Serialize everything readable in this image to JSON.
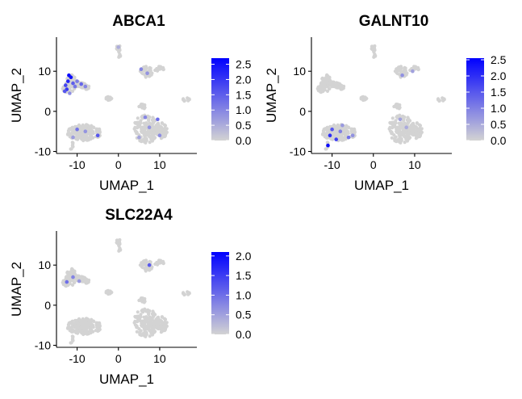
{
  "colors": {
    "low": "#d3d3d3",
    "high": "#0000ff",
    "axis": "#000000"
  },
  "chart_data": [
    {
      "type": "scatter",
      "title": "ABCA1",
      "xlabel": "UMAP_1",
      "ylabel": "UMAP_2",
      "xlim": [
        -15,
        19
      ],
      "ylim": [
        -10.5,
        18.5
      ],
      "xticks": [
        -10,
        0,
        10
      ],
      "yticks": [
        -10,
        0,
        10
      ],
      "legend": {
        "position": "right",
        "min": 0,
        "max": 2.7,
        "ticks": [
          0.0,
          0.5,
          1.0,
          1.5,
          2.0,
          2.5
        ],
        "tick_labels": [
          "0.0",
          "0.5",
          "1.0",
          "1.5",
          "2.0",
          "2.5"
        ]
      },
      "expression": [
        {
          "x": -11.5,
          "y": 8.5,
          "v": 2.5
        },
        {
          "x": -12.2,
          "y": 7.5,
          "v": 2.2
        },
        {
          "x": -12.8,
          "y": 6.5,
          "v": 1.8
        },
        {
          "x": -12.5,
          "y": 5.5,
          "v": 2.0
        },
        {
          "x": -11.0,
          "y": 7.0,
          "v": 1.5
        },
        {
          "x": -10.5,
          "y": 6.2,
          "v": 1.2
        },
        {
          "x": -9.0,
          "y": 6.8,
          "v": 1.4
        },
        {
          "x": -8.0,
          "y": 6.2,
          "v": 1.0
        },
        {
          "x": -11.8,
          "y": 4.5,
          "v": 0.9
        },
        {
          "x": -12.0,
          "y": 9.0,
          "v": 2.6
        },
        {
          "x": -10.0,
          "y": 7.5,
          "v": 1.1
        },
        {
          "x": -13.0,
          "y": 5.0,
          "v": 1.6
        },
        {
          "x": -10.0,
          "y": -4.5,
          "v": 1.2
        },
        {
          "x": -8.0,
          "y": -5.0,
          "v": 0.8
        },
        {
          "x": -5.0,
          "y": -6.0,
          "v": 1.6
        },
        {
          "x": -11.0,
          "y": -6.5,
          "v": 0.7
        },
        {
          "x": 6.5,
          "y": -1.5,
          "v": 1.0
        },
        {
          "x": 7.5,
          "y": -4.0,
          "v": 0.8
        },
        {
          "x": 9.5,
          "y": -2.0,
          "v": 1.3
        },
        {
          "x": 5.0,
          "y": -6.5,
          "v": 0.6
        },
        {
          "x": 7.0,
          "y": 9.5,
          "v": 0.8
        },
        {
          "x": 5.5,
          "y": 10.5,
          "v": 1.0
        },
        {
          "x": 0.0,
          "y": 16.0,
          "v": 0.5
        },
        {
          "x": 10.0,
          "y": -6.0,
          "v": 0.9
        }
      ]
    },
    {
      "type": "scatter",
      "title": "GALNT10",
      "xlabel": "UMAP_1",
      "ylabel": "UMAP_2",
      "xlim": [
        -15,
        19
      ],
      "ylim": [
        -10.5,
        18.5
      ],
      "xticks": [
        -10,
        0,
        10
      ],
      "yticks": [
        -10,
        0,
        10
      ],
      "legend": {
        "position": "right",
        "min": 0,
        "max": 2.55,
        "ticks": [
          0.0,
          0.5,
          1.0,
          1.5,
          2.0,
          2.5
        ],
        "tick_labels": [
          "0.0",
          "0.5",
          "1.0",
          "1.5",
          "2.0",
          "2.5"
        ]
      },
      "expression": [
        {
          "x": -10.0,
          "y": -4.5,
          "v": 1.5
        },
        {
          "x": -8.0,
          "y": -5.0,
          "v": 1.0
        },
        {
          "x": -10.5,
          "y": -6.0,
          "v": 2.0
        },
        {
          "x": -6.0,
          "y": -6.5,
          "v": 1.2
        },
        {
          "x": -9.0,
          "y": -7.0,
          "v": 1.8
        },
        {
          "x": -11.0,
          "y": -8.5,
          "v": 2.4
        },
        {
          "x": -5.0,
          "y": -6.0,
          "v": 0.8
        },
        {
          "x": -7.5,
          "y": -3.5,
          "v": 0.7
        },
        {
          "x": 6.5,
          "y": -2.0,
          "v": 0.6
        },
        {
          "x": 8.0,
          "y": -4.0,
          "v": 0.5
        },
        {
          "x": 7.0,
          "y": 9.0,
          "v": 0.8
        },
        {
          "x": 9.5,
          "y": 10.0,
          "v": 0.6
        }
      ]
    },
    {
      "type": "scatter",
      "title": "SLC22A4",
      "xlabel": "UMAP_1",
      "ylabel": "UMAP_2",
      "xlim": [
        -15,
        19
      ],
      "ylim": [
        -10.5,
        18.5
      ],
      "xticks": [
        -10,
        0,
        10
      ],
      "yticks": [
        -10,
        0,
        10
      ],
      "legend": {
        "position": "right",
        "min": 0,
        "max": 2.1,
        "ticks": [
          0.0,
          0.5,
          1.0,
          1.5,
          2.0
        ],
        "tick_labels": [
          "0.0",
          "0.5",
          "1.0",
          "1.5",
          "2.0"
        ]
      },
      "expression": [
        {
          "x": -12.5,
          "y": 5.8,
          "v": 1.0
        },
        {
          "x": -11.0,
          "y": 7.0,
          "v": 0.8
        },
        {
          "x": 7.5,
          "y": 10.0,
          "v": 1.2
        },
        {
          "x": -9.5,
          "y": 6.0,
          "v": 0.6
        }
      ]
    }
  ]
}
